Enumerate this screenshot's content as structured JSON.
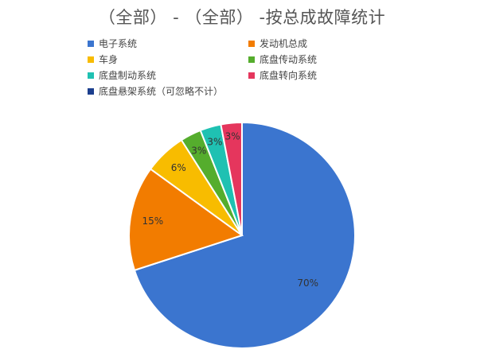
{
  "chart_data": {
    "type": "pie",
    "title": "（全部） - （全部） -按总成故障统计",
    "legend_position": "top",
    "slices": [
      {
        "name": "电子系统",
        "value": 70,
        "label": "70%",
        "color": "#3b75cf"
      },
      {
        "name": "发动机总成",
        "value": 15,
        "label": "15%",
        "color": "#f27c00"
      },
      {
        "name": "车身",
        "value": 6,
        "label": "6%",
        "color": "#f8bc00"
      },
      {
        "name": "底盘传动系统",
        "value": 3,
        "label": "3%",
        "color": "#55ad2d"
      },
      {
        "name": "底盘制动系统",
        "value": 3,
        "label": "3%",
        "color": "#1fc1b2"
      },
      {
        "name": "底盘转向系统",
        "value": 3,
        "label": "3%",
        "color": "#e5365d"
      },
      {
        "name": "底盘悬架系统（可忽略不计）",
        "value": 0,
        "label": "",
        "color": "#1c3f8e"
      }
    ]
  }
}
